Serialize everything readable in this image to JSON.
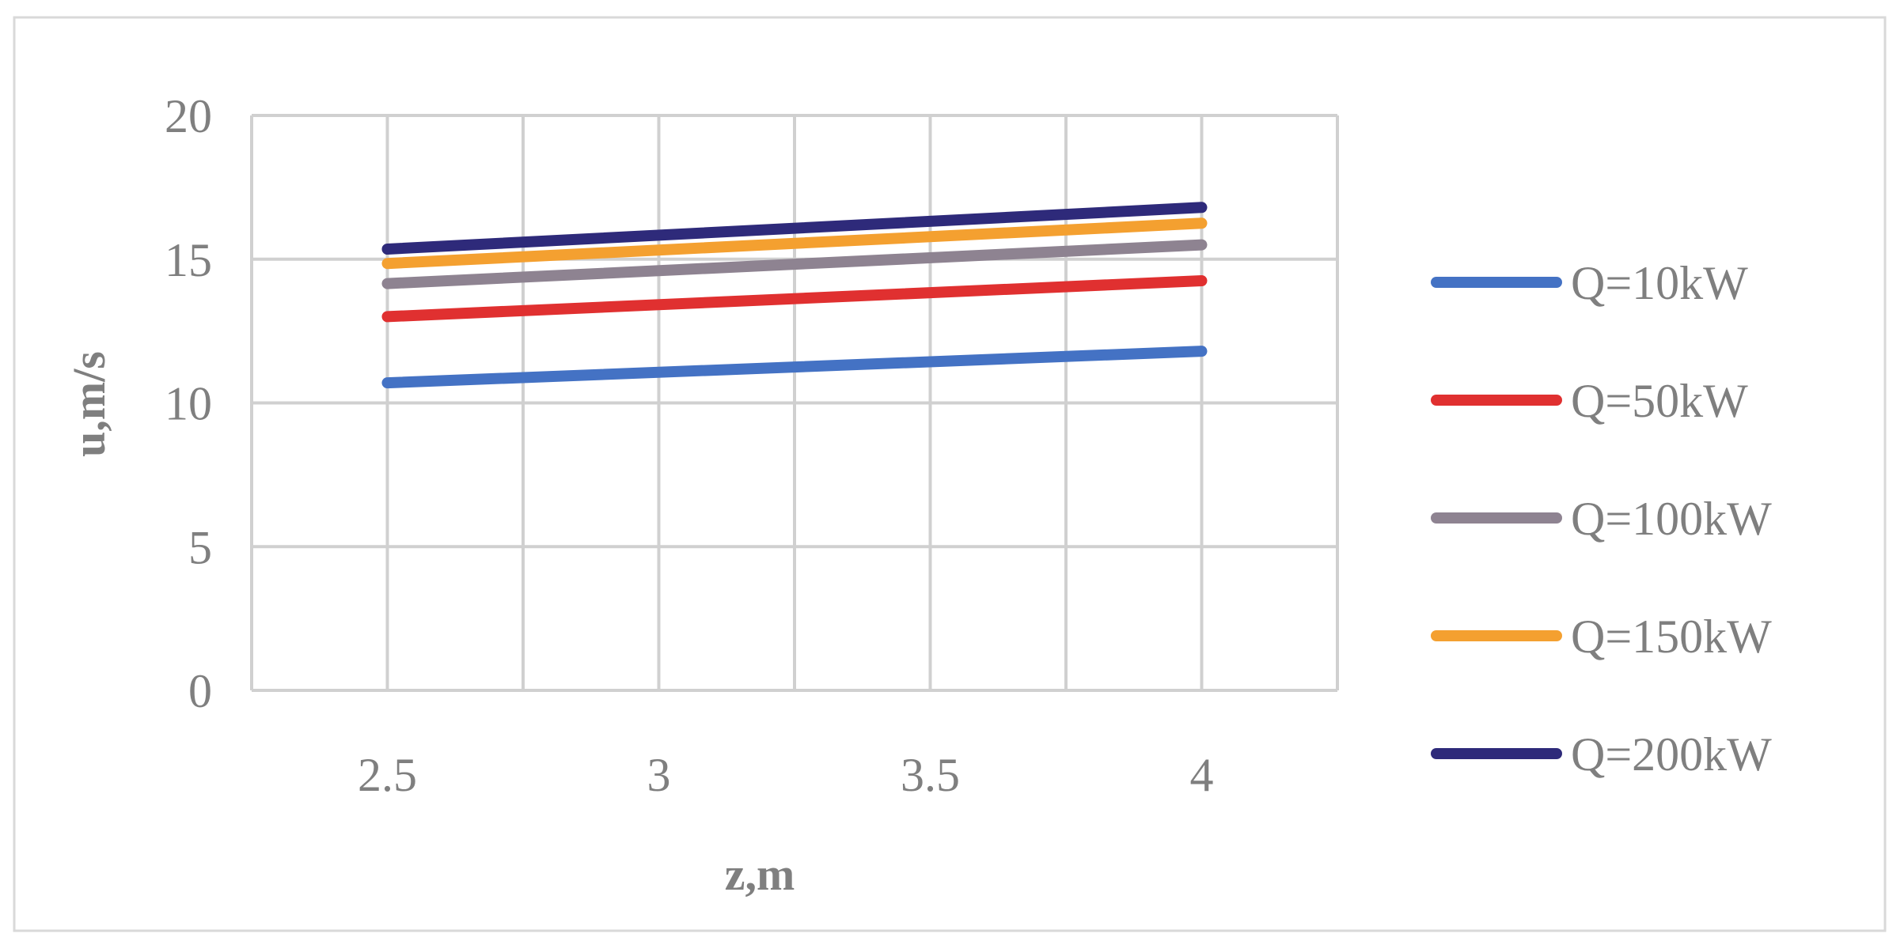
{
  "chart_data": {
    "type": "line",
    "title": "",
    "xlabel": "z,m",
    "ylabel": "u,m/s",
    "xlim": [
      2.25,
      4.25
    ],
    "ylim": [
      0,
      20
    ],
    "x_ticks": [
      "2.5",
      "3",
      "3.5",
      "4"
    ],
    "y_ticks": [
      "0",
      "5",
      "10",
      "15",
      "20"
    ],
    "grid": true,
    "legend_position": "right",
    "series": [
      {
        "name": "Q=10kW",
        "color": "#4472c4",
        "x": [
          2.5,
          4.0
        ],
        "y": [
          10.7,
          11.8
        ]
      },
      {
        "name": "Q=50kW",
        "color": "#e03030",
        "x": [
          2.5,
          4.0
        ],
        "y": [
          13.0,
          14.25
        ]
      },
      {
        "name": "Q=100kW",
        "color": "#8e8391",
        "x": [
          2.5,
          4.0
        ],
        "y": [
          14.15,
          15.5
        ]
      },
      {
        "name": "Q=150kW",
        "color": "#f4a030",
        "x": [
          2.5,
          4.0
        ],
        "y": [
          14.85,
          16.25
        ]
      },
      {
        "name": "Q=200kW",
        "color": "#2e2a7a",
        "x": [
          2.5,
          4.0
        ],
        "y": [
          15.35,
          16.8
        ]
      }
    ]
  }
}
